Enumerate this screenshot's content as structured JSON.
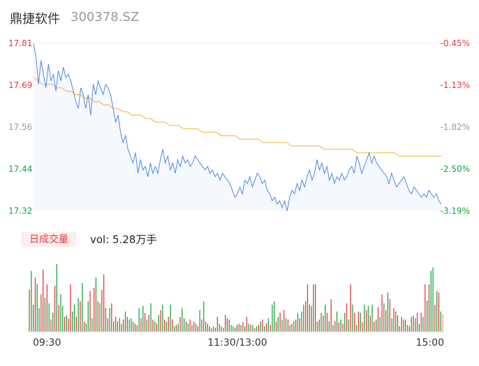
{
  "header": {
    "name": "鼎捷软件",
    "code": "300378.SZ"
  },
  "volume_label": {
    "badge": "日成交量",
    "prefix": "vol: ",
    "value": "5.28万手"
  },
  "colors": {
    "up": "#e8383d",
    "down": "#1aa53e",
    "price_line": "#4e87e6",
    "avg_line": "#f2b233",
    "neutral": "#999999"
  },
  "chart_data": [
    {
      "type": "line",
      "ylim": [
        17.32,
        17.81
      ],
      "y_ticks": [
        {
          "price": "17.81",
          "pct": "-0.45%",
          "dir": "up"
        },
        {
          "price": "17.69",
          "pct": "-1.13%",
          "dir": "up"
        },
        {
          "price": "17.56",
          "pct": "-1.82%",
          "dir": "flat"
        },
        {
          "price": "17.44",
          "pct": "-2.50%",
          "dir": "down"
        },
        {
          "price": "17.32",
          "pct": "-3.19%",
          "dir": "down"
        }
      ],
      "x_ticks": [
        "09:30",
        "11:30/13:00",
        "15:00"
      ],
      "series": [
        {
          "values": [
            17.81,
            17.77,
            17.69,
            17.76,
            17.72,
            17.68,
            17.75,
            17.7,
            17.72,
            17.67,
            17.73,
            17.7,
            17.74,
            17.71,
            17.72,
            17.7,
            17.67,
            17.64,
            17.62,
            17.68,
            17.66,
            17.62,
            17.66,
            17.6,
            17.69,
            17.66,
            17.7,
            17.68,
            17.66,
            17.69,
            17.68,
            17.66,
            17.62,
            17.58,
            17.6,
            17.55,
            17.52,
            17.54,
            17.5,
            17.48,
            17.46,
            17.49,
            17.43,
            17.47,
            17.44,
            17.45,
            17.42,
            17.46,
            17.43,
            17.45,
            17.43,
            17.47,
            17.5,
            17.46,
            17.48,
            17.44,
            17.46,
            17.43,
            17.47,
            17.45,
            17.48,
            17.46,
            17.47,
            17.45,
            17.46,
            17.48,
            17.47,
            17.46,
            17.45,
            17.44,
            17.45,
            17.43,
            17.44,
            17.42,
            17.43,
            17.41,
            17.43,
            17.42,
            17.41,
            17.4,
            17.38,
            17.36,
            17.37,
            17.39,
            17.37,
            17.41,
            17.4,
            17.42,
            17.39,
            17.41,
            17.43,
            17.42,
            17.4,
            17.41,
            17.38,
            17.37,
            17.35,
            17.36,
            17.34,
            17.35,
            17.33,
            17.35,
            17.32,
            17.36,
            17.38,
            17.37,
            17.4,
            17.38,
            17.41,
            17.39,
            17.42,
            17.44,
            17.41,
            17.43,
            17.47,
            17.44,
            17.46,
            17.43,
            17.45,
            17.41,
            17.43,
            17.4,
            17.42,
            17.41,
            17.43,
            17.41,
            17.42,
            17.44,
            17.45,
            17.43,
            17.48,
            17.46,
            17.43,
            17.45,
            17.47,
            17.49,
            17.46,
            17.48,
            17.46,
            17.45,
            17.44,
            17.43,
            17.42,
            17.4,
            17.43,
            17.41,
            17.39,
            17.4,
            17.41,
            17.42,
            17.4,
            17.38,
            17.37,
            17.39,
            17.38,
            17.37,
            17.36,
            17.37,
            17.36,
            17.38,
            17.37,
            17.36,
            17.37,
            17.35,
            17.34
          ]
        },
        {
          "values": [
            17.71,
            17.7,
            17.69,
            17.69,
            17.69,
            17.68,
            17.68,
            17.67,
            17.67,
            17.66,
            17.66,
            17.65,
            17.65,
            17.64,
            17.64,
            17.63,
            17.63,
            17.62,
            17.62,
            17.61,
            17.61,
            17.6,
            17.6,
            17.6,
            17.59,
            17.59,
            17.58,
            17.58,
            17.58,
            17.57,
            17.57,
            17.57,
            17.56,
            17.56,
            17.56,
            17.56,
            17.55,
            17.55,
            17.55,
            17.55,
            17.54,
            17.54,
            17.54,
            17.54,
            17.53,
            17.53,
            17.53,
            17.53,
            17.53,
            17.52,
            17.52,
            17.52,
            17.52,
            17.52,
            17.52,
            17.51,
            17.51,
            17.51,
            17.51,
            17.51,
            17.51,
            17.51,
            17.5,
            17.5,
            17.5,
            17.5,
            17.5,
            17.5,
            17.5,
            17.49,
            17.49,
            17.49,
            17.49,
            17.49,
            17.49,
            17.49,
            17.49,
            17.49,
            17.48,
            17.48,
            17.48,
            17.48,
            17.48,
            17.48,
            17.48,
            17.48,
            17.48,
            17.48
          ]
        }
      ]
    },
    {
      "type": "bar",
      "series": [
        {
          "values": [
            62,
            90,
            40,
            80,
            70,
            35,
            55,
            92,
            50,
            70,
            42,
            18,
            28,
            68,
            100,
            40,
            55,
            38,
            22,
            24,
            20,
            70,
            30,
            40,
            22,
            50,
            45,
            72,
            15,
            12,
            45,
            60,
            20,
            65,
            80,
            45,
            42,
            62,
            85,
            35,
            20,
            35,
            42,
            15,
            22,
            15,
            20,
            12,
            18,
            30,
            22,
            18,
            20,
            15,
            12,
            10,
            35,
            20,
            38,
            28,
            18,
            25,
            42,
            18,
            15,
            12,
            25,
            32,
            40,
            18,
            15,
            22,
            40,
            18,
            8,
            10,
            12,
            22,
            35,
            20,
            15,
            12,
            18,
            10,
            15,
            12,
            8,
            32,
            18,
            45,
            15,
            12,
            8,
            5,
            8,
            6,
            22,
            12,
            8,
            6,
            25,
            20,
            18,
            10,
            8,
            6,
            10,
            12,
            10,
            14,
            8,
            22,
            12,
            10,
            10,
            5,
            8,
            10,
            15,
            18,
            8,
            12,
            20,
            10,
            40,
            45,
            15,
            22,
            28,
            18,
            32,
            20,
            18,
            10,
            12,
            16,
            18,
            28,
            20,
            30,
            40,
            45,
            70,
            40,
            38,
            70,
            70,
            15,
            18,
            28,
            24,
            40,
            28,
            16,
            48,
            10,
            16,
            30,
            14,
            18,
            12,
            28,
            42,
            18,
            70,
            40,
            28,
            10,
            30,
            28,
            14,
            40,
            32,
            38,
            24,
            40,
            15,
            18,
            36,
            22,
            55,
            42,
            32,
            58,
            48,
            20,
            35,
            30,
            24,
            8,
            22,
            18,
            18,
            10,
            8,
            22,
            24,
            20,
            28,
            12,
            28,
            22,
            70,
            46,
            70,
            90,
            95,
            40,
            60,
            58,
            30,
            26
          ],
          "dir": [
            "u",
            "d",
            "d",
            "u",
            "d",
            "d",
            "u",
            "u",
            "d",
            "u",
            "d",
            "u",
            "d",
            "u",
            "d",
            "u",
            "d",
            "d",
            "u",
            "d",
            "u",
            "u",
            "d",
            "d",
            "u",
            "d",
            "u",
            "d",
            "u",
            "d",
            "d",
            "u",
            "d",
            "u",
            "d",
            "u",
            "d",
            "u",
            "u",
            "d",
            "u",
            "d",
            "u",
            "d",
            "u",
            "d",
            "u",
            "d",
            "u",
            "d",
            "u",
            "d",
            "d",
            "u",
            "d",
            "u",
            "d",
            "u",
            "d",
            "u",
            "d",
            "u",
            "d",
            "u",
            "d",
            "u",
            "d",
            "u",
            "d",
            "u",
            "d",
            "u",
            "d",
            "u",
            "d",
            "u",
            "d",
            "u",
            "d",
            "d",
            "u",
            "d",
            "u",
            "d",
            "u",
            "d",
            "u",
            "d",
            "u",
            "d",
            "u",
            "d",
            "u",
            "d",
            "u",
            "d",
            "u",
            "d",
            "u",
            "d",
            "u",
            "d",
            "u",
            "d",
            "d",
            "u",
            "d",
            "u",
            "d",
            "u",
            "d",
            "u",
            "d",
            "u",
            "d",
            "u",
            "d",
            "u",
            "d",
            "u",
            "d",
            "u",
            "d",
            "u",
            "d",
            "d",
            "u",
            "d",
            "u",
            "d",
            "u",
            "d",
            "u",
            "d",
            "u",
            "d",
            "u",
            "d",
            "u",
            "d",
            "u",
            "d",
            "u",
            "d",
            "u",
            "d",
            "u",
            "d",
            "u",
            "d",
            "u",
            "d",
            "u",
            "d",
            "u",
            "d",
            "u",
            "d",
            "u",
            "d",
            "u",
            "d",
            "u",
            "d",
            "u",
            "d",
            "u",
            "d",
            "u",
            "d",
            "u",
            "d",
            "u",
            "d",
            "u",
            "d",
            "u",
            "d",
            "u",
            "d",
            "u",
            "d",
            "u",
            "d",
            "u",
            "d",
            "u",
            "d",
            "u",
            "d",
            "u",
            "d",
            "u",
            "d",
            "u",
            "d",
            "u",
            "d",
            "u",
            "d",
            "u",
            "d",
            "u",
            "d",
            "u",
            "d",
            "d",
            "u",
            "d",
            "u",
            "d",
            "u",
            "u",
            "d",
            "d",
            "u"
          ]
        }
      ]
    }
  ]
}
